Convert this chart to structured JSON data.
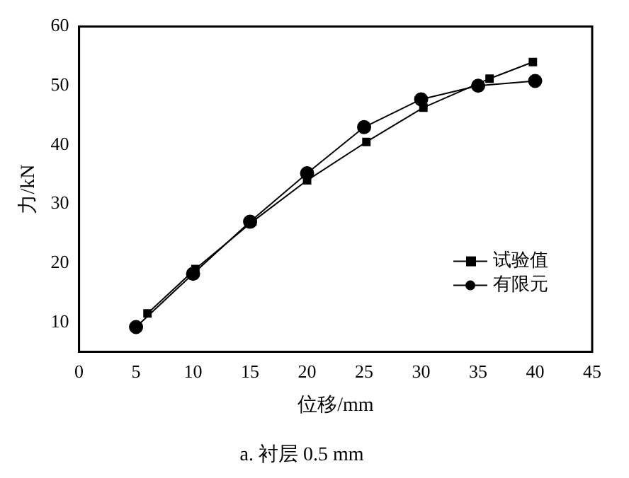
{
  "chart_data": {
    "type": "line",
    "title": "a. 衬层 0.5 mm",
    "xlabel": "位移/mm",
    "ylabel": "力/kN",
    "xlim": [
      0,
      45
    ],
    "xticks": [
      0,
      5,
      10,
      15,
      20,
      25,
      30,
      35,
      40,
      45
    ],
    "ylim": [
      5,
      60
    ],
    "yticks": [
      10,
      20,
      30,
      40,
      50,
      60
    ],
    "grid": false,
    "legend": "bottom right",
    "line_style": "solid",
    "series": [
      {
        "name": "试验值",
        "color": "#000000",
        "marker": "square",
        "x": [
          6,
          10.2,
          15.2,
          20,
          25.2,
          30.2,
          36,
          39.8
        ],
        "values": [
          11.5,
          19,
          27,
          34,
          40.5,
          46.3,
          51.2,
          54
        ]
      },
      {
        "name": "有限元",
        "color": "#000000",
        "marker": "circle",
        "x": [
          5,
          10,
          15,
          20,
          25,
          30,
          35,
          40
        ],
        "values": [
          9.2,
          18.2,
          27,
          35.2,
          43,
          47.7,
          50,
          50.8
        ]
      }
    ]
  }
}
